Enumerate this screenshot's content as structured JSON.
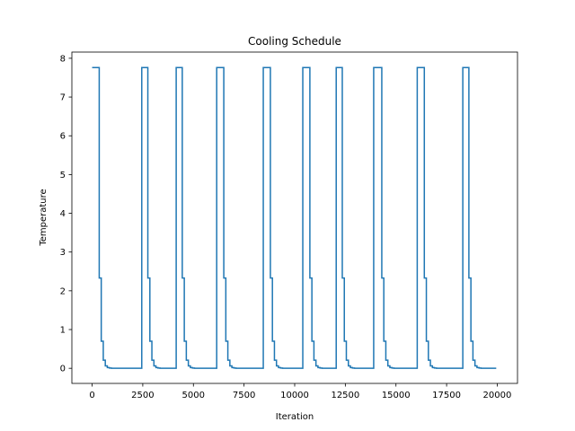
{
  "chart_data": {
    "type": "line",
    "title": "Cooling Schedule",
    "xlabel": "Iteration",
    "ylabel": "Temperature",
    "xlim": [
      -1000,
      21000
    ],
    "ylim": [
      -0.39,
      8.16
    ],
    "xticks": [
      0,
      2500,
      5000,
      7500,
      10000,
      12500,
      15000,
      17500,
      20000
    ],
    "yticks": [
      0,
      1,
      2,
      3,
      4,
      5,
      6,
      7,
      8
    ],
    "grid": false,
    "legend": "none",
    "series": [
      {
        "color": "#1f77b4",
        "cycles": [
          {
            "start": 0,
            "hold_end": 350
          },
          {
            "start": 2450,
            "hold_end": 2750
          },
          {
            "start": 4150,
            "hold_end": 4450
          },
          {
            "start": 6150,
            "hold_end": 6500
          },
          {
            "start": 8450,
            "hold_end": 8800
          },
          {
            "start": 10400,
            "hold_end": 10750
          },
          {
            "start": 12050,
            "hold_end": 12350
          },
          {
            "start": 13900,
            "hold_end": 14300
          },
          {
            "start": 16050,
            "hold_end": 16400
          },
          {
            "start": 18300,
            "hold_end": 18600
          }
        ],
        "levels": [
          7.76,
          2.33,
          0.7,
          0.21,
          0.063,
          0.019,
          0.006,
          0.002,
          0.0
        ],
        "step_width": 100,
        "x_end": 19950
      }
    ]
  }
}
